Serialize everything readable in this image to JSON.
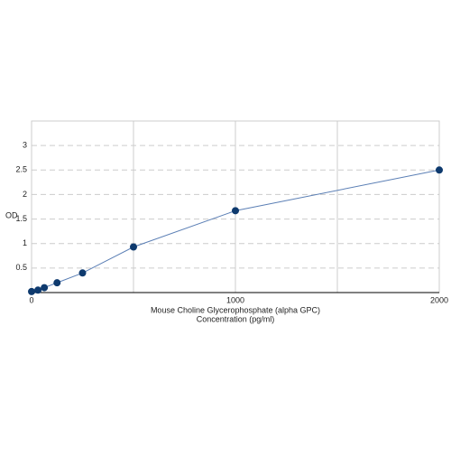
{
  "chart_data": {
    "type": "line",
    "x": [
      0,
      31.25,
      62.5,
      125,
      250,
      500,
      1000,
      2000
    ],
    "series": [
      {
        "name": "OD",
        "color": "#0e3a6e",
        "line_color": "#5b7fb5",
        "values": [
          0.02,
          0.05,
          0.1,
          0.2,
          0.4,
          0.93,
          1.67,
          2.5
        ]
      }
    ],
    "xlim": [
      0,
      2000
    ],
    "xticks": [
      0,
      1000,
      2000
    ],
    "x_grid_lines": [
      500,
      1500
    ],
    "ylim": [
      0,
      3.5
    ],
    "yticks": [
      0.5,
      1,
      1.5,
      2,
      2.5,
      3
    ],
    "ylabel": "OD",
    "xlabel": [
      "Mouse Choline Glycerophosphate (alpha GPC)",
      "Concentration (pg/ml)"
    ],
    "grid": true
  }
}
